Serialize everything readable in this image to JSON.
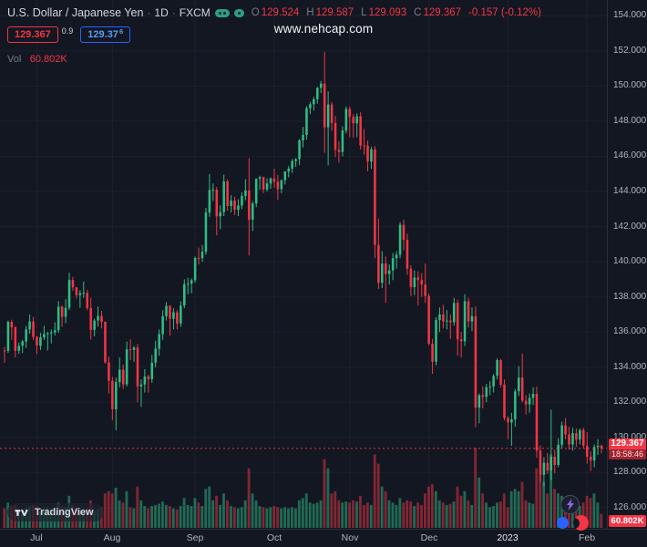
{
  "header": {
    "symbol_title": "U.S. Dollar / Japanese Yen",
    "separator": "·",
    "timeframe": "1D",
    "exchange": "FXCM",
    "ohlc": {
      "o_label": "O",
      "o": "129.524",
      "h_label": "H",
      "h": "129.587",
      "l_label": "L",
      "l": "129.093",
      "c_label": "C",
      "c": "129.367",
      "change": "-0.157 (-0.12%)"
    },
    "sell_price": "129.367",
    "spread": "0.9",
    "buy_price_main": "129.37",
    "buy_price_sup": "6",
    "vol_label": "Vol",
    "vol_value": "60.802K"
  },
  "watermark": "www.nehcap.com",
  "price_axis": {
    "labels": [
      "154.000",
      "152.000",
      "150.000",
      "148.000",
      "146.000",
      "144.000",
      "142.000",
      "140.000",
      "138.000",
      "136.000",
      "134.000",
      "132.000",
      "130.000",
      "128.000",
      "126.000"
    ],
    "current_price": "129.367",
    "countdown": "18:58:46",
    "volume_label": "60.802K"
  },
  "logo": {
    "text": "TradingView"
  },
  "icons": {
    "legend_toggles": "green-marker-pills",
    "bolt": "lightning-bolt",
    "blue_bubble": "blue-circle",
    "red_bubble": "red-crescent",
    "logo": "tradingview-logo"
  },
  "colors": {
    "background": "#131722",
    "up": "#2ebd85",
    "down": "#f23645",
    "grid": "rgba(130,140,160,0.08)",
    "axis_text": "#b2b5be",
    "accent_blue": "#2962ff"
  },
  "chart_data": {
    "type": "candlestick",
    "symbol": "USDJPY",
    "title": "U.S. Dollar / Japanese Yen 1D FXCM",
    "interval": "1D",
    "price_range": [
      124.9,
      154.9
    ],
    "y_ticks": [
      154,
      152,
      150,
      148,
      146,
      144,
      142,
      140,
      138,
      136,
      134,
      132,
      130,
      128,
      126
    ],
    "x_ticks": [
      {
        "label": "Jul",
        "index": 9
      },
      {
        "label": "Aug",
        "index": 30
      },
      {
        "label": "Sep",
        "index": 53
      },
      {
        "label": "Oct",
        "index": 75
      },
      {
        "label": "Nov",
        "index": 96
      },
      {
        "label": "Dec",
        "index": 118
      },
      {
        "label": "2023",
        "index": 140,
        "bright": true
      },
      {
        "label": "Feb",
        "index": 162
      }
    ],
    "current_price": 129.367,
    "current_change": -0.157,
    "current_change_pct": -0.12,
    "current_volume_k": 60.802,
    "volume_unit": "K",
    "candles": [
      [
        134.95,
        135.15,
        134.25,
        134.93,
        85
      ],
      [
        134.93,
        136.65,
        134.8,
        136.58,
        110
      ],
      [
        136.58,
        136.7,
        135.55,
        136.26,
        95
      ],
      [
        136.26,
        136.35,
        134.55,
        134.93,
        100
      ],
      [
        134.93,
        135.4,
        134.75,
        135.21,
        80
      ],
      [
        135.21,
        135.55,
        134.8,
        135.46,
        75
      ],
      [
        135.46,
        136.35,
        135.1,
        136.15,
        85
      ],
      [
        136.15,
        137.0,
        135.9,
        136.6,
        95
      ],
      [
        136.6,
        136.85,
        135.55,
        135.72,
        100
      ],
      [
        135.72,
        135.78,
        134.74,
        135.22,
        95
      ],
      [
        135.22,
        135.95,
        134.97,
        135.69,
        70
      ],
      [
        135.69,
        136.35,
        135.55,
        135.89,
        85
      ],
      [
        135.89,
        136.0,
        134.95,
        135.93,
        90
      ],
      [
        135.93,
        136.15,
        135.35,
        135.97,
        80
      ],
      [
        135.97,
        136.55,
        135.8,
        136.1,
        75
      ],
      [
        136.1,
        137.75,
        135.95,
        137.44,
        110
      ],
      [
        137.44,
        137.5,
        136.3,
        136.87,
        95
      ],
      [
        136.87,
        137.87,
        136.5,
        137.38,
        90
      ],
      [
        137.38,
        139.38,
        137.25,
        138.96,
        140
      ],
      [
        138.96,
        139.13,
        138.35,
        138.54,
        100
      ],
      [
        138.54,
        138.56,
        137.9,
        138.1,
        80
      ],
      [
        138.1,
        138.38,
        137.38,
        138.2,
        85
      ],
      [
        138.2,
        138.87,
        137.95,
        138.23,
        80
      ],
      [
        138.23,
        138.4,
        137.25,
        137.36,
        85
      ],
      [
        137.36,
        137.95,
        135.57,
        136.12,
        120
      ],
      [
        136.12,
        136.75,
        135.75,
        136.65,
        75
      ],
      [
        136.65,
        137.45,
        136.3,
        136.91,
        80
      ],
      [
        136.91,
        137.2,
        136.2,
        136.58,
        90
      ],
      [
        136.58,
        136.6,
        134.2,
        134.27,
        150
      ],
      [
        134.27,
        134.6,
        132.5,
        133.22,
        160
      ],
      [
        133.22,
        133.45,
        130.98,
        131.6,
        150
      ],
      [
        131.6,
        133.4,
        130.4,
        133.15,
        175
      ],
      [
        133.15,
        134.55,
        132.85,
        133.86,
        120
      ],
      [
        133.86,
        134.15,
        132.76,
        133.02,
        110
      ],
      [
        133.02,
        135.45,
        132.9,
        135.01,
        160
      ],
      [
        135.01,
        135.58,
        134.4,
        134.98,
        90
      ],
      [
        134.98,
        135.2,
        134.3,
        135.12,
        85
      ],
      [
        135.12,
        135.3,
        132.0,
        132.9,
        180
      ],
      [
        132.9,
        133.3,
        131.73,
        133.02,
        120
      ],
      [
        133.02,
        133.88,
        132.55,
        133.47,
        95
      ],
      [
        133.47,
        133.58,
        132.55,
        133.31,
        85
      ],
      [
        133.31,
        134.7,
        133.1,
        134.25,
        95
      ],
      [
        134.25,
        135.5,
        134.0,
        135.05,
        100
      ],
      [
        135.05,
        136.15,
        134.65,
        135.88,
        105
      ],
      [
        135.88,
        137.23,
        135.55,
        136.9,
        115
      ],
      [
        136.9,
        137.7,
        136.65,
        137.48,
        100
      ],
      [
        137.48,
        137.53,
        135.8,
        136.75,
        95
      ],
      [
        136.75,
        137.35,
        136.15,
        137.12,
        85
      ],
      [
        137.12,
        137.25,
        136.15,
        136.48,
        80
      ],
      [
        136.48,
        137.75,
        136.3,
        137.5,
        95
      ],
      [
        137.5,
        139.0,
        137.35,
        138.72,
        130
      ],
      [
        138.72,
        139.08,
        138.15,
        138.76,
        100
      ],
      [
        138.76,
        139.05,
        138.2,
        138.95,
        95
      ],
      [
        138.95,
        140.3,
        138.8,
        140.21,
        130
      ],
      [
        140.21,
        140.8,
        139.85,
        140.2,
        110
      ],
      [
        140.2,
        140.95,
        140.0,
        140.57,
        95
      ],
      [
        140.57,
        143.07,
        140.4,
        142.8,
        170
      ],
      [
        142.8,
        144.99,
        142.55,
        144.08,
        180
      ],
      [
        144.08,
        144.45,
        143.45,
        144.1,
        120
      ],
      [
        144.1,
        144.25,
        141.5,
        142.58,
        140
      ],
      [
        142.58,
        143.2,
        141.85,
        142.82,
        100
      ],
      [
        142.82,
        144.95,
        142.6,
        144.57,
        150
      ],
      [
        144.57,
        144.7,
        142.9,
        143.17,
        120
      ],
      [
        143.17,
        143.8,
        142.8,
        143.48,
        95
      ],
      [
        143.48,
        143.7,
        142.65,
        142.95,
        90
      ],
      [
        142.95,
        143.55,
        142.6,
        143.2,
        85
      ],
      [
        143.2,
        143.95,
        143.0,
        143.75,
        90
      ],
      [
        143.75,
        144.7,
        143.5,
        144.06,
        120
      ],
      [
        144.06,
        145.9,
        140.35,
        142.39,
        260
      ],
      [
        142.39,
        143.45,
        141.75,
        143.32,
        150
      ],
      [
        143.32,
        144.75,
        143.1,
        144.72,
        120
      ],
      [
        144.72,
        144.9,
        144.1,
        144.81,
        95
      ],
      [
        144.81,
        144.85,
        143.9,
        144.11,
        90
      ],
      [
        144.11,
        144.75,
        144.0,
        144.45,
        85
      ],
      [
        144.45,
        144.8,
        144.15,
        144.74,
        90
      ],
      [
        144.74,
        145.3,
        144.2,
        144.55,
        95
      ],
      [
        144.55,
        144.95,
        143.52,
        144.13,
        90
      ],
      [
        144.13,
        144.7,
        143.9,
        144.63,
        85
      ],
      [
        144.63,
        145.15,
        144.4,
        145.14,
        90
      ],
      [
        145.14,
        145.44,
        144.8,
        145.3,
        85
      ],
      [
        145.3,
        145.85,
        145.05,
        145.73,
        90
      ],
      [
        145.73,
        145.9,
        145.4,
        145.84,
        85
      ],
      [
        145.84,
        146.98,
        145.5,
        146.91,
        120
      ],
      [
        146.91,
        147.67,
        146.5,
        147.22,
        130
      ],
      [
        147.22,
        148.86,
        146.95,
        148.74,
        150
      ],
      [
        148.74,
        149.1,
        148.4,
        148.97,
        110
      ],
      [
        148.97,
        149.39,
        148.6,
        149.25,
        105
      ],
      [
        149.25,
        149.95,
        149.0,
        149.9,
        110
      ],
      [
        149.9,
        150.29,
        149.6,
        150.14,
        120
      ],
      [
        150.14,
        151.95,
        146.2,
        147.65,
        300
      ],
      [
        147.65,
        149.7,
        145.49,
        148.95,
        260
      ],
      [
        148.95,
        149.1,
        147.45,
        147.9,
        150
      ],
      [
        147.9,
        148.3,
        145.95,
        146.38,
        160
      ],
      [
        146.38,
        146.85,
        145.65,
        146.25,
        120
      ],
      [
        146.25,
        147.7,
        146.0,
        147.47,
        110
      ],
      [
        147.47,
        148.85,
        147.3,
        148.7,
        115
      ],
      [
        148.7,
        148.83,
        147.1,
        148.25,
        110
      ],
      [
        148.25,
        148.4,
        147.05,
        147.88,
        120
      ],
      [
        147.88,
        148.45,
        147.1,
        148.28,
        115
      ],
      [
        148.28,
        148.5,
        146.4,
        146.62,
        140
      ],
      [
        146.62,
        147.55,
        146.1,
        146.6,
        100
      ],
      [
        146.6,
        146.9,
        145.15,
        145.7,
        110
      ],
      [
        145.7,
        146.55,
        145.3,
        146.4,
        100
      ],
      [
        146.4,
        146.58,
        140.2,
        140.95,
        320
      ],
      [
        140.95,
        142.45,
        138.45,
        138.8,
        280
      ],
      [
        138.8,
        140.6,
        138.5,
        139.9,
        180
      ],
      [
        139.9,
        140.3,
        137.65,
        139.3,
        160
      ],
      [
        139.3,
        139.85,
        138.7,
        139.5,
        120
      ],
      [
        139.5,
        140.5,
        138.95,
        140.2,
        110
      ],
      [
        140.2,
        140.6,
        139.6,
        140.4,
        100
      ],
      [
        140.4,
        142.25,
        140.2,
        142.1,
        130
      ],
      [
        142.1,
        142.4,
        140.65,
        141.25,
        110
      ],
      [
        141.25,
        141.6,
        139.25,
        139.6,
        120
      ],
      [
        139.6,
        139.8,
        138.05,
        138.55,
        115
      ],
      [
        138.55,
        139.5,
        138.1,
        139.1,
        95
      ],
      [
        139.1,
        139.45,
        137.5,
        138.95,
        110
      ],
      [
        138.95,
        139.35,
        138.0,
        138.7,
        100
      ],
      [
        138.7,
        139.9,
        137.65,
        138.05,
        150
      ],
      [
        138.05,
        138.2,
        135.25,
        135.33,
        180
      ],
      [
        135.33,
        135.6,
        133.62,
        134.31,
        190
      ],
      [
        134.31,
        136.85,
        134.1,
        136.68,
        160
      ],
      [
        136.68,
        137.4,
        136.0,
        137.0,
        120
      ],
      [
        137.0,
        137.55,
        136.2,
        136.6,
        110
      ],
      [
        136.6,
        137.25,
        136.15,
        136.65,
        100
      ],
      [
        136.65,
        137.0,
        135.6,
        136.55,
        105
      ],
      [
        136.55,
        137.95,
        136.35,
        137.65,
        115
      ],
      [
        137.65,
        137.85,
        134.65,
        135.58,
        180
      ],
      [
        135.58,
        136.0,
        134.55,
        135.47,
        140
      ],
      [
        135.47,
        138.15,
        135.2,
        137.75,
        160
      ],
      [
        137.75,
        137.95,
        136.25,
        136.6,
        120
      ],
      [
        136.6,
        137.4,
        136.05,
        136.9,
        100
      ],
      [
        136.9,
        137.45,
        130.58,
        131.7,
        350
      ],
      [
        131.7,
        132.5,
        130.8,
        132.4,
        220
      ],
      [
        132.4,
        132.9,
        131.65,
        132.3,
        150
      ],
      [
        132.3,
        133.05,
        132.0,
        132.85,
        110
      ],
      [
        132.85,
        133.2,
        132.4,
        132.9,
        90
      ],
      [
        132.9,
        133.6,
        132.55,
        133.5,
        95
      ],
      [
        133.5,
        134.5,
        133.3,
        134.4,
        110
      ],
      [
        134.4,
        134.47,
        132.85,
        133.0,
        115
      ],
      [
        133.0,
        133.3,
        130.95,
        131.1,
        150
      ],
      [
        131.1,
        131.2,
        129.9,
        130.85,
        90
      ],
      [
        130.85,
        131.4,
        129.52,
        131.02,
        160
      ],
      [
        131.02,
        132.75,
        130.6,
        132.62,
        170
      ],
      [
        132.62,
        134.05,
        132.35,
        133.4,
        160
      ],
      [
        133.4,
        134.77,
        131.99,
        132.08,
        200
      ],
      [
        132.08,
        132.4,
        131.3,
        131.88,
        120
      ],
      [
        131.88,
        132.5,
        131.4,
        132.25,
        110
      ],
      [
        132.25,
        132.85,
        131.85,
        132.48,
        105
      ],
      [
        132.48,
        132.9,
        128.85,
        129.25,
        260
      ],
      [
        129.25,
        129.55,
        127.46,
        127.87,
        230
      ],
      [
        127.87,
        128.87,
        127.22,
        128.55,
        200
      ],
      [
        128.55,
        129.1,
        127.9,
        128.11,
        150
      ],
      [
        128.11,
        131.58,
        127.57,
        128.9,
        320
      ],
      [
        128.9,
        129.3,
        127.95,
        128.43,
        170
      ],
      [
        128.43,
        129.95,
        128.3,
        129.58,
        150
      ],
      [
        129.58,
        130.9,
        129.35,
        130.68,
        140
      ],
      [
        130.68,
        131.1,
        129.9,
        130.17,
        120
      ],
      [
        130.17,
        130.6,
        129.3,
        129.6,
        110
      ],
      [
        129.6,
        130.55,
        129.25,
        130.24,
        105
      ],
      [
        130.24,
        130.5,
        129.45,
        129.87,
        100
      ],
      [
        129.87,
        130.5,
        129.6,
        130.42,
        95
      ],
      [
        130.42,
        130.55,
        129.35,
        129.52,
        110
      ],
      [
        129.52,
        130.3,
        128.5,
        128.9,
        140
      ],
      [
        128.9,
        129.2,
        128.08,
        128.68,
        130
      ],
      [
        128.68,
        129.6,
        128.3,
        129.45,
        150
      ],
      [
        129.45,
        129.9,
        129.0,
        129.52,
        110
      ],
      [
        129.524,
        129.587,
        129.093,
        129.367,
        60.802
      ]
    ]
  }
}
